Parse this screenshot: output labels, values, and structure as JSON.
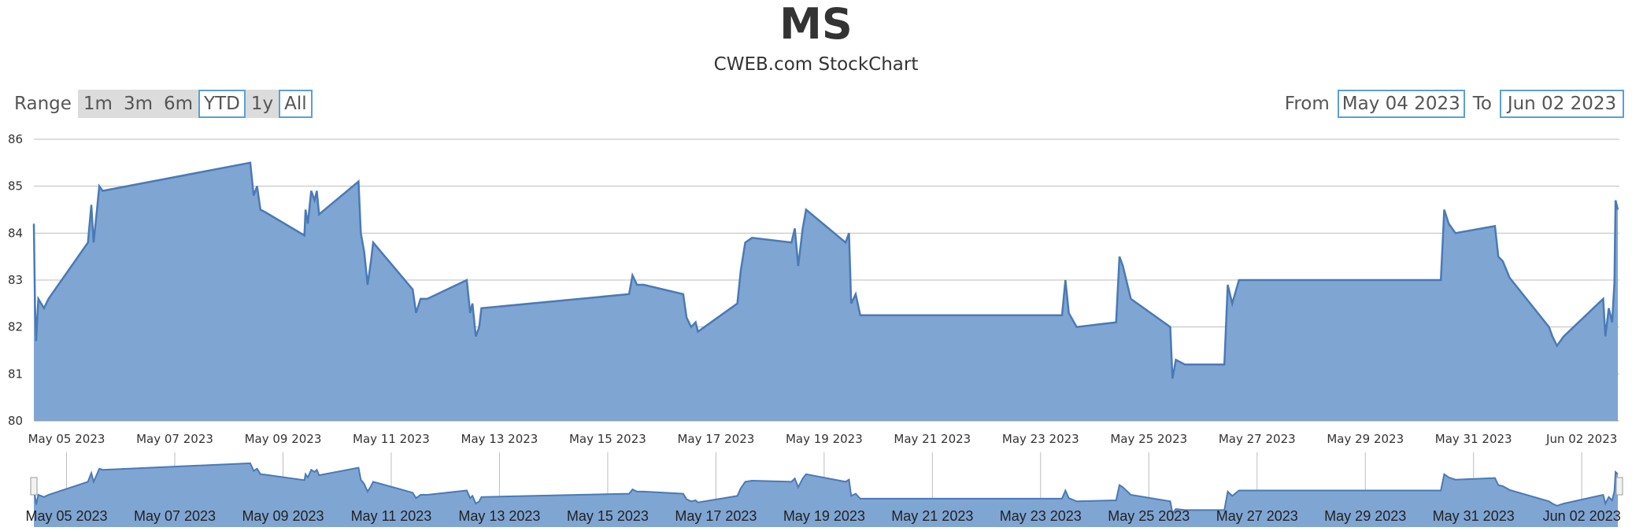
{
  "chart_data": {
    "type": "area",
    "title": "MS",
    "subtitle": "CWEB.com StockChart",
    "ylim": [
      80,
      86
    ],
    "y_ticks": [
      "80",
      "81",
      "82",
      "83",
      "84",
      "85",
      "86"
    ],
    "x_range": [
      "2023-05-04 09:30",
      "2023-06-02 16:00"
    ],
    "x_tick_labels": [
      "May 05 2023",
      "May 07 2023",
      "May 09 2023",
      "May 11 2023",
      "May 13 2023",
      "May 15 2023",
      "May 17 2023",
      "May 19 2023",
      "May 21 2023",
      "May 23 2023",
      "May 25 2023",
      "May 27 2023",
      "May 29 2023",
      "May 31 2023",
      "Jun 02 2023"
    ],
    "grid": true,
    "fill_color": "#7fa5d3",
    "line_color": "#4a7ab5",
    "series": [
      {
        "values": [
          [
            "2023-05-04 09:30",
            84.2
          ],
          [
            "2023-05-04 10:00",
            82.5
          ],
          [
            "2023-05-04 10:30",
            81.7
          ],
          [
            "2023-05-04 11:30",
            82.6
          ],
          [
            "2023-05-04 14:00",
            82.4
          ],
          [
            "2023-05-04 16:00",
            82.6
          ],
          [
            "2023-05-05 09:30",
            83.8
          ],
          [
            "2023-05-05 11:00",
            84.6
          ],
          [
            "2023-05-05 12:00",
            83.8
          ],
          [
            "2023-05-05 13:30",
            84.5
          ],
          [
            "2023-05-05 14:30",
            85.0
          ],
          [
            "2023-05-05 16:00",
            84.9
          ],
          [
            "2023-05-08 09:30",
            85.5
          ],
          [
            "2023-05-08 11:00",
            84.8
          ],
          [
            "2023-05-08 12:30",
            85.0
          ],
          [
            "2023-05-08 14:00",
            84.5
          ],
          [
            "2023-05-08 16:00",
            84.45
          ],
          [
            "2023-05-09 09:30",
            83.95
          ],
          [
            "2023-05-09 10:00",
            84.5
          ],
          [
            "2023-05-09 11:00",
            84.2
          ],
          [
            "2023-05-09 12:30",
            84.9
          ],
          [
            "2023-05-09 14:00",
            84.7
          ],
          [
            "2023-05-09 15:00",
            84.9
          ],
          [
            "2023-05-09 16:00",
            84.4
          ],
          [
            "2023-05-10 09:30",
            85.1
          ],
          [
            "2023-05-10 10:30",
            84.0
          ],
          [
            "2023-05-10 12:00",
            83.6
          ],
          [
            "2023-05-10 13:30",
            82.9
          ],
          [
            "2023-05-10 15:00",
            83.4
          ],
          [
            "2023-05-10 16:00",
            83.8
          ],
          [
            "2023-05-11 09:30",
            82.8
          ],
          [
            "2023-05-11 11:00",
            82.3
          ],
          [
            "2023-05-11 13:00",
            82.6
          ],
          [
            "2023-05-11 16:00",
            82.6
          ],
          [
            "2023-05-12 09:30",
            83.0
          ],
          [
            "2023-05-12 11:00",
            82.3
          ],
          [
            "2023-05-12 12:00",
            82.5
          ],
          [
            "2023-05-12 13:30",
            81.8
          ],
          [
            "2023-05-12 15:00",
            82.0
          ],
          [
            "2023-05-12 16:00",
            82.4
          ],
          [
            "2023-05-15 09:30",
            82.7
          ],
          [
            "2023-05-15 11:00",
            83.1
          ],
          [
            "2023-05-15 13:00",
            82.9
          ],
          [
            "2023-05-15 16:00",
            82.9
          ],
          [
            "2023-05-16 09:30",
            82.7
          ],
          [
            "2023-05-16 11:00",
            82.2
          ],
          [
            "2023-05-16 13:00",
            82.0
          ],
          [
            "2023-05-16 15:00",
            82.1
          ],
          [
            "2023-05-16 16:00",
            81.9
          ],
          [
            "2023-05-17 09:30",
            82.5
          ],
          [
            "2023-05-17 11:00",
            83.2
          ],
          [
            "2023-05-17 13:00",
            83.8
          ],
          [
            "2023-05-17 16:00",
            83.9
          ],
          [
            "2023-05-18 09:30",
            83.8
          ],
          [
            "2023-05-18 11:00",
            84.1
          ],
          [
            "2023-05-18 12:30",
            83.3
          ],
          [
            "2023-05-18 14:30",
            84.1
          ],
          [
            "2023-05-18 16:00",
            84.5
          ],
          [
            "2023-05-19 09:30",
            83.8
          ],
          [
            "2023-05-19 11:00",
            84.0
          ],
          [
            "2023-05-19 12:00",
            82.5
          ],
          [
            "2023-05-19 14:00",
            82.7
          ],
          [
            "2023-05-19 16:00",
            82.25
          ],
          [
            "2023-05-22 09:30",
            82.25
          ],
          [
            "2023-05-22 12:00",
            82.25
          ],
          [
            "2023-05-22 16:00",
            82.25
          ],
          [
            "2023-05-23 09:30",
            82.25
          ],
          [
            "2023-05-23 11:00",
            83.0
          ],
          [
            "2023-05-23 12:30",
            82.3
          ],
          [
            "2023-05-23 16:00",
            82.0
          ],
          [
            "2023-05-24 09:30",
            82.1
          ],
          [
            "2023-05-24 11:00",
            83.5
          ],
          [
            "2023-05-24 12:30",
            83.3
          ],
          [
            "2023-05-24 16:00",
            82.6
          ],
          [
            "2023-05-25 09:30",
            82.0
          ],
          [
            "2023-05-25 10:30",
            80.9
          ],
          [
            "2023-05-25 12:00",
            81.3
          ],
          [
            "2023-05-25 16:00",
            81.2
          ],
          [
            "2023-05-26 09:30",
            81.2
          ],
          [
            "2023-05-26 11:00",
            82.9
          ],
          [
            "2023-05-26 13:00",
            82.5
          ],
          [
            "2023-05-26 16:00",
            83.0
          ],
          [
            "2023-05-30 09:30",
            83.0
          ],
          [
            "2023-05-30 11:00",
            84.5
          ],
          [
            "2023-05-30 13:00",
            84.2
          ],
          [
            "2023-05-30 16:00",
            84.0
          ],
          [
            "2023-05-31 09:30",
            84.15
          ],
          [
            "2023-05-31 11:00",
            83.5
          ],
          [
            "2023-05-31 13:00",
            83.4
          ],
          [
            "2023-05-31 16:00",
            83.05
          ],
          [
            "2023-06-01 09:30",
            82.0
          ],
          [
            "2023-06-01 11:00",
            81.8
          ],
          [
            "2023-06-01 13:00",
            81.6
          ],
          [
            "2023-06-01 16:00",
            81.8
          ],
          [
            "2023-06-02 09:30",
            82.6
          ],
          [
            "2023-06-02 10:30",
            81.8
          ],
          [
            "2023-06-02 12:00",
            82.4
          ],
          [
            "2023-06-02 13:30",
            82.1
          ],
          [
            "2023-06-02 14:30",
            82.95
          ],
          [
            "2023-06-02 15:00",
            84.7
          ],
          [
            "2023-06-02 16:00",
            84.5
          ]
        ]
      }
    ]
  },
  "range_selector": {
    "label": "Range",
    "buttons": [
      {
        "label": "1m",
        "style": "filled"
      },
      {
        "label": "3m",
        "style": "filled"
      },
      {
        "label": "6m",
        "style": "filled"
      },
      {
        "label": "YTD",
        "style": "outlined"
      },
      {
        "label": "1y",
        "style": "filled"
      },
      {
        "label": "All",
        "style": "outlined"
      }
    ]
  },
  "date_inputs": {
    "from_label": "From",
    "from_value": "May 04 2023",
    "to_label": "To",
    "to_value": "Jun 02 2023"
  }
}
